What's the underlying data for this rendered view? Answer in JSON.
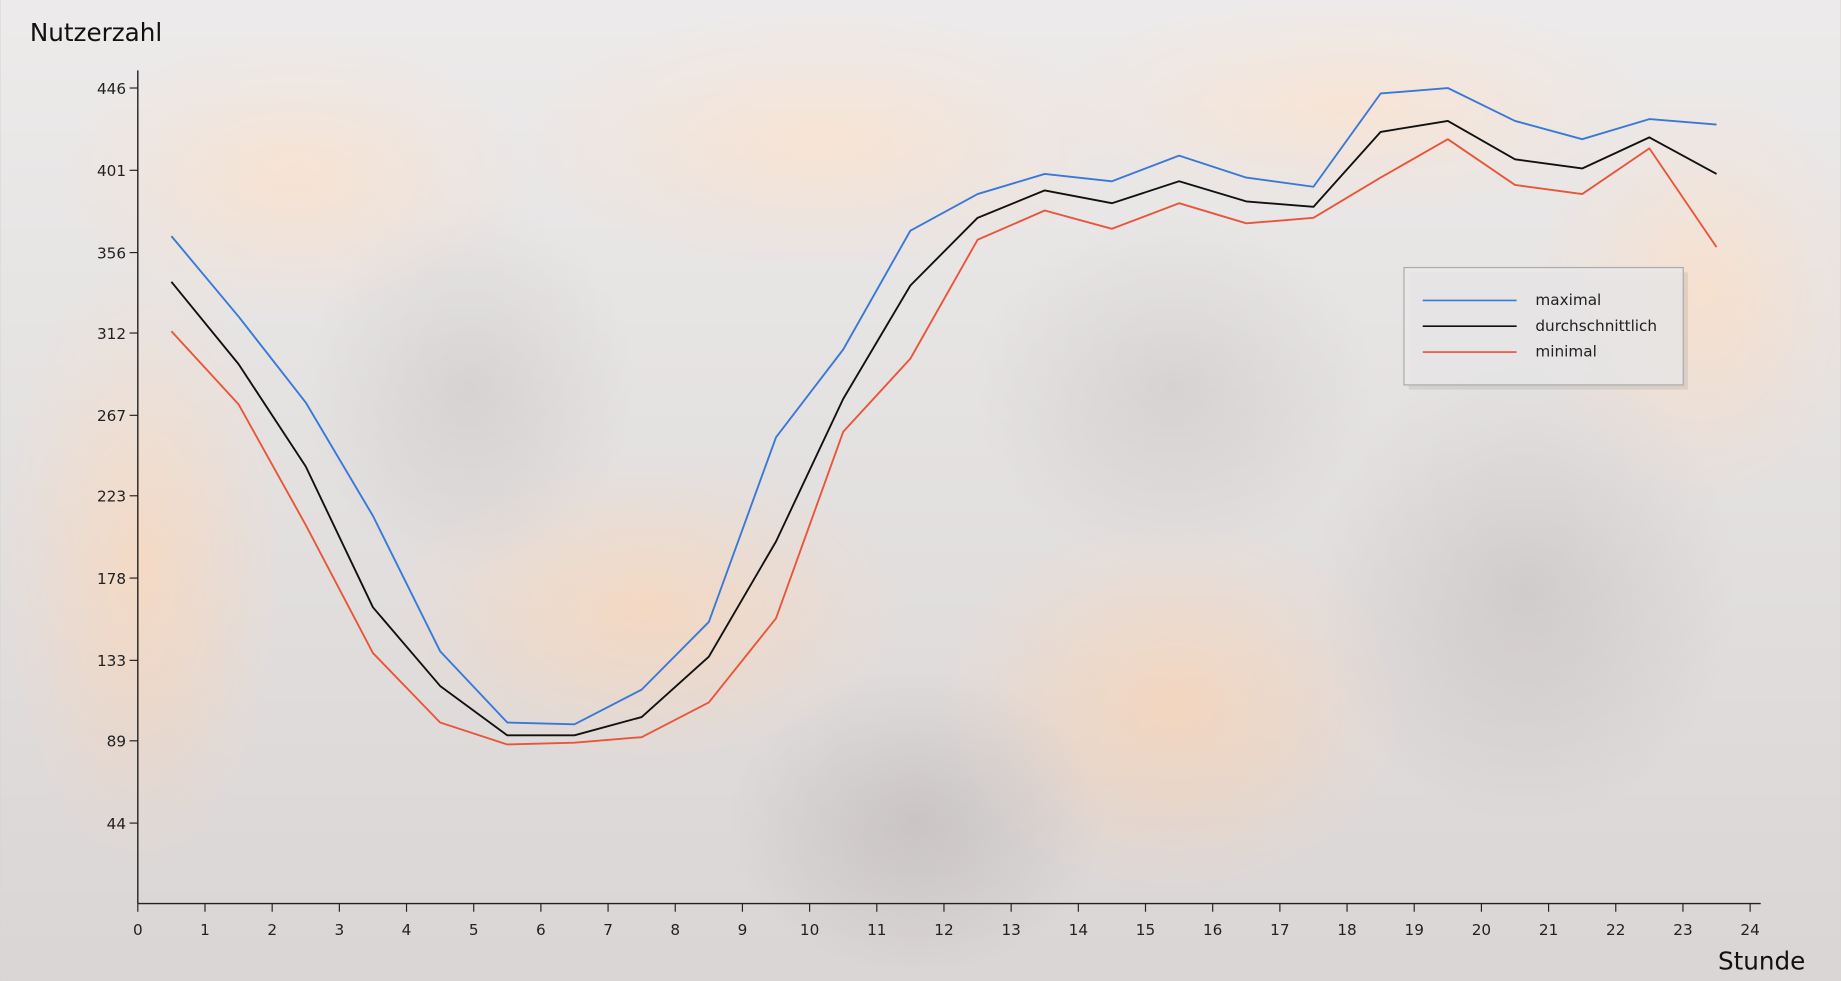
{
  "chart_data": {
    "type": "line",
    "y_label": "Nutzerzahl",
    "x_label": "Stunde",
    "x": [
      0.5,
      1.5,
      2.5,
      3.5,
      4.5,
      5.5,
      6.5,
      7.5,
      8.5,
      9.5,
      10.5,
      11.5,
      12.5,
      13.5,
      14.5,
      15.5,
      16.5,
      17.5,
      18.5,
      19.5,
      20.5,
      21.5,
      22.5,
      23.5
    ],
    "xlim": [
      0,
      24
    ],
    "xticks": [
      0,
      1,
      2,
      3,
      4,
      5,
      6,
      7,
      8,
      9,
      10,
      11,
      12,
      13,
      14,
      15,
      16,
      17,
      18,
      19,
      20,
      21,
      22,
      23,
      24
    ],
    "ylim": [
      0,
      446
    ],
    "yticks": [
      44,
      89,
      133,
      178,
      223,
      267,
      312,
      356,
      401,
      446
    ],
    "legend": "right",
    "series": [
      {
        "name": "maximal",
        "color": "#3a78d8",
        "values": [
          365,
          321,
          274,
          212,
          138,
          99,
          98,
          117,
          154,
          255,
          303,
          368,
          388,
          399,
          395,
          409,
          397,
          392,
          443,
          446,
          428,
          418,
          429,
          426
        ]
      },
      {
        "name": "durchschnittlich",
        "color": "#111111",
        "values": [
          340,
          295,
          239,
          162,
          119,
          92,
          92,
          102,
          135,
          198,
          276,
          338,
          375,
          390,
          383,
          395,
          384,
          381,
          422,
          428,
          407,
          402,
          419,
          399
        ]
      },
      {
        "name": "minimal",
        "color": "#e8553a",
        "values": [
          313,
          273,
          207,
          137,
          99,
          87,
          88,
          91,
          110,
          156,
          258,
          298,
          363,
          379,
          369,
          383,
          372,
          375,
          397,
          418,
          393,
          388,
          413,
          359
        ]
      }
    ]
  }
}
